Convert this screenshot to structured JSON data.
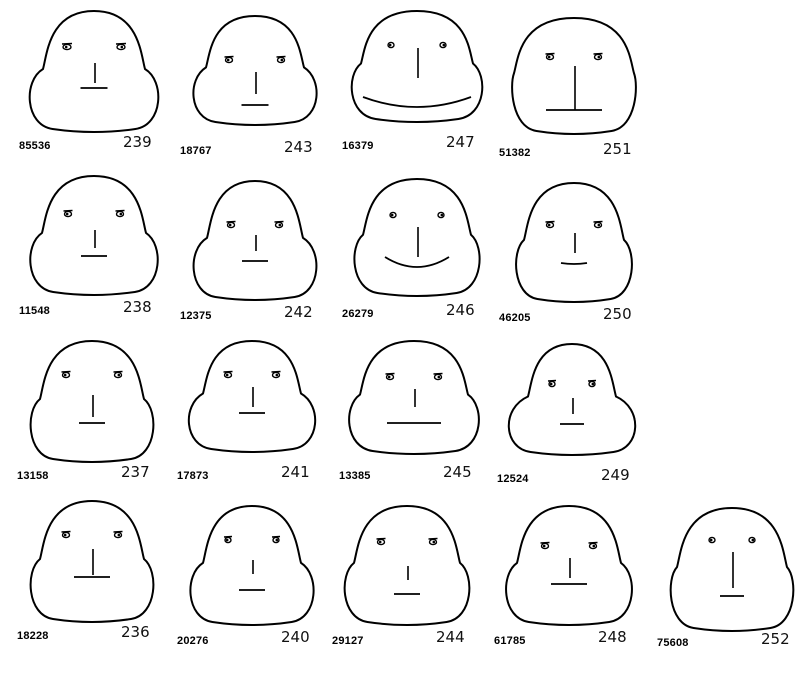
{
  "faces": [
    {
      "code": "85536",
      "number": "239"
    },
    {
      "code": "18767",
      "number": "243"
    },
    {
      "code": "16379",
      "number": "247"
    },
    {
      "code": "51382",
      "number": "251"
    },
    {
      "code": "11548",
      "number": "238"
    },
    {
      "code": "12375",
      "number": "242"
    },
    {
      "code": "26279",
      "number": "246"
    },
    {
      "code": "46205",
      "number": "250"
    },
    {
      "code": "13158",
      "number": "237"
    },
    {
      "code": "17873",
      "number": "241"
    },
    {
      "code": "13385",
      "number": "245"
    },
    {
      "code": "12524",
      "number": "249"
    },
    {
      "code": "18228",
      "number": "236"
    },
    {
      "code": "20276",
      "number": "240"
    },
    {
      "code": "29127",
      "number": "244"
    },
    {
      "code": "61785",
      "number": "248"
    },
    {
      "code": "75608",
      "number": "252"
    }
  ],
  "colors": {
    "ink": "#000000",
    "background": "#ffffff"
  }
}
